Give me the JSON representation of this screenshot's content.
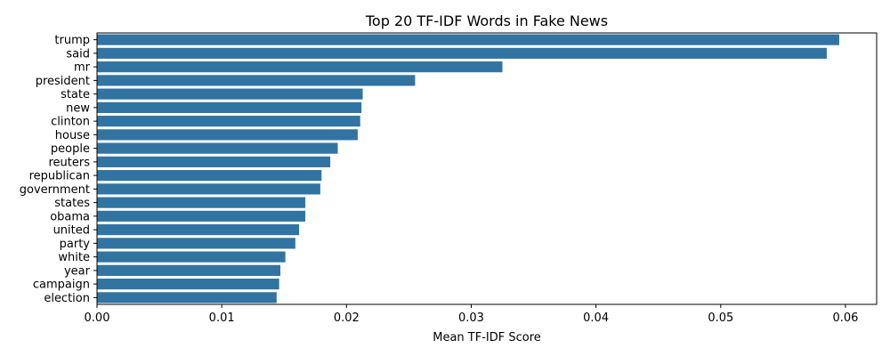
{
  "chart_data": {
    "type": "bar",
    "orientation": "horizontal",
    "title": "Top 20 TF-IDF Words in Fake News",
    "xlabel": "Mean TF-IDF Score",
    "ylabel": "",
    "xlim": [
      0,
      0.0625
    ],
    "xticks": [
      "0.00",
      "0.01",
      "0.02",
      "0.03",
      "0.04",
      "0.05",
      "0.06"
    ],
    "xtick_values": [
      0,
      0.01,
      0.02,
      0.03,
      0.04,
      0.05,
      0.06
    ],
    "grid": false,
    "bar_color": "#3274a1",
    "categories": [
      "trump",
      "said",
      "mr",
      "president",
      "state",
      "new",
      "clinton",
      "house",
      "people",
      "reuters",
      "republican",
      "government",
      "states",
      "obama",
      "united",
      "party",
      "white",
      "year",
      "campaign",
      "election"
    ],
    "values": [
      0.0595,
      0.0585,
      0.0325,
      0.0255,
      0.0213,
      0.0212,
      0.0211,
      0.0209,
      0.0193,
      0.0187,
      0.018,
      0.0179,
      0.0167,
      0.0167,
      0.0162,
      0.0159,
      0.0151,
      0.0147,
      0.0146,
      0.0144
    ]
  }
}
